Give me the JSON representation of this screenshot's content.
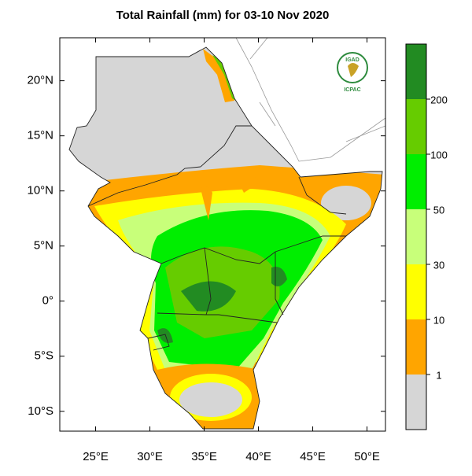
{
  "chart_data": {
    "type": "map",
    "title": "Total Rainfall (mm) for 03-10 Nov 2020",
    "xlim": [
      21.7,
      51.7
    ],
    "ylim": [
      -11.8,
      23.9
    ],
    "xticks": [
      {
        "value": 25,
        "label": "25°E"
      },
      {
        "value": 30,
        "label": "30°E"
      },
      {
        "value": 35,
        "label": "35°E"
      },
      {
        "value": 40,
        "label": "40°E"
      },
      {
        "value": 45,
        "label": "45°E"
      },
      {
        "value": 50,
        "label": "50°E"
      }
    ],
    "yticks": [
      {
        "value": 20,
        "label": "20°N"
      },
      {
        "value": 15,
        "label": "15°N"
      },
      {
        "value": 10,
        "label": "10°N"
      },
      {
        "value": 5,
        "label": "5°N"
      },
      {
        "value": 0,
        "label": "0°"
      },
      {
        "value": -5,
        "label": "5°S"
      },
      {
        "value": -10,
        "label": "10°S"
      }
    ],
    "colorbar": {
      "levels": [
        1,
        10,
        30,
        50,
        100,
        200
      ],
      "colors": [
        "#d6d6d6",
        "#ffa500",
        "#ffff00",
        "#c8ff7a",
        "#00ee00",
        "#66cc00",
        "#228b22"
      ]
    },
    "logo": {
      "top": "IGAD",
      "bottom": "ICPAC"
    }
  }
}
